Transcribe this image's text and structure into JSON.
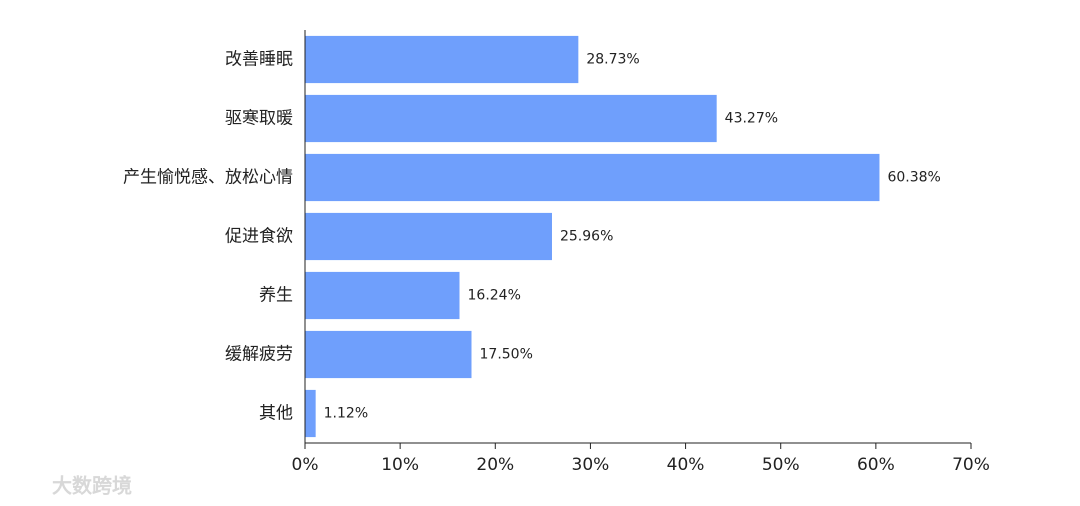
{
  "chart_data": {
    "type": "bar",
    "orientation": "horizontal",
    "categories": [
      "改善睡眠",
      "驱寒取暖",
      "产生愉悦感、放松心情",
      "促进食欲",
      "养生",
      "缓解疲劳",
      "其他"
    ],
    "values": [
      28.73,
      43.27,
      60.38,
      25.96,
      16.24,
      17.5,
      1.12
    ],
    "value_labels": [
      "28.73%",
      "43.27%",
      "60.38%",
      "25.96%",
      "16.24%",
      "17.50%",
      "1.12%"
    ],
    "color": "#6f9ffc",
    "xlim": [
      0,
      70
    ],
    "xticks": [
      {
        "value": 0,
        "label": "0%"
      },
      {
        "value": 10,
        "label": "10%"
      },
      {
        "value": 20,
        "label": "20%"
      },
      {
        "value": 30,
        "label": "30%"
      },
      {
        "value": 40,
        "label": "40%"
      },
      {
        "value": 50,
        "label": "50%"
      },
      {
        "value": 60,
        "label": "60%"
      },
      {
        "value": 70,
        "label": "70%"
      }
    ]
  },
  "watermark": "大数跨境"
}
